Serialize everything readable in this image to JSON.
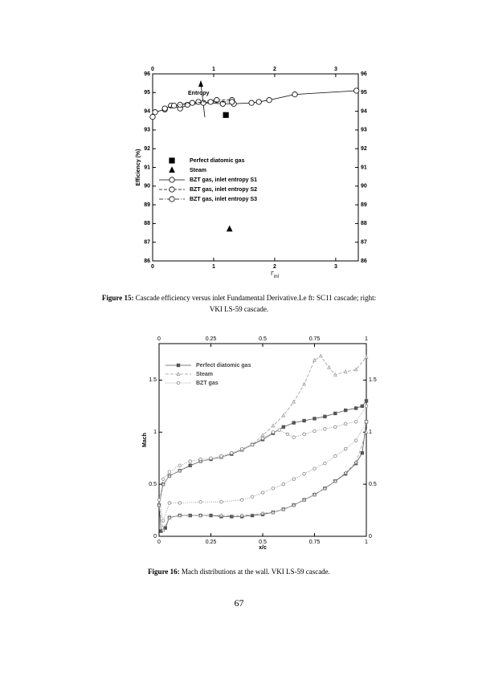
{
  "chart_data": [
    {
      "type": "line",
      "ylabel": "Efficiency (%)",
      "xlabel": "Γ",
      "xlabel_subscript": "inl",
      "annotation": "Entropy",
      "xlim": [
        0,
        3.37
      ],
      "xticks": [
        0,
        1,
        2,
        3
      ],
      "ylim": [
        86,
        96
      ],
      "yticks": [
        86,
        87,
        88,
        89,
        90,
        91,
        92,
        93,
        94,
        95,
        96
      ],
      "top_axis": true,
      "right_axis": true,
      "series": [
        {
          "name": "Perfect diatomic gas",
          "color": "#000000",
          "marker": "square",
          "line": "none",
          "x": [
            1.2
          ],
          "values": [
            93.8
          ]
        },
        {
          "name": "Steam",
          "color": "#000000",
          "marker": "triangle",
          "line": "none",
          "x": [
            1.26
          ],
          "values": [
            87.7
          ]
        },
        {
          "name": "BZT gas, inlet entropy S1",
          "color": "#000000",
          "marker": "circle",
          "line": "solid",
          "x": [
            0,
            0.04,
            0.2,
            0.3,
            0.45,
            0.57,
            0.83,
            1.15,
            1.33,
            1.62,
            1.74,
            1.91,
            2.33,
            3.34
          ],
          "values": [
            93.7,
            93.95,
            94.1,
            94.3,
            94.15,
            94.35,
            94.45,
            94.4,
            94.4,
            94.45,
            94.5,
            94.6,
            94.9,
            95.1
          ]
        },
        {
          "name": "BZT gas, inlet entropy S2",
          "color": "#000000",
          "marker": "circle",
          "line": "dashed",
          "x": [
            0.2,
            0.45,
            0.75,
            1.05,
            1.3
          ],
          "values": [
            94.15,
            94.35,
            94.5,
            94.6,
            94.6
          ]
        },
        {
          "name": "BZT gas, inlet entropy S3",
          "color": "#000000",
          "marker": "circle",
          "line": "dashdot",
          "x": [
            0.35,
            0.65,
            0.95,
            1.3
          ],
          "values": [
            94.3,
            94.45,
            94.5,
            94.5
          ]
        }
      ]
    },
    {
      "type": "line",
      "ylabel": "Mach",
      "xlabel": "x/c",
      "xlim": [
        0,
        1
      ],
      "xticks": [
        0,
        0.25,
        0.5,
        0.75,
        1
      ],
      "ylim": [
        0,
        1.85
      ],
      "yticks": [
        0,
        0.5,
        1,
        1.5
      ],
      "top_axis": true,
      "right_axis": true,
      "series": [
        {
          "name": "Perfect diatomic gas",
          "color": "#555555",
          "marker": "square",
          "line": "solid",
          "x": [
            1,
            0.98,
            0.95,
            0.9,
            0.85,
            0.8,
            0.75,
            0.7,
            0.65,
            0.6,
            0.55,
            0.5,
            0.45,
            0.4,
            0.35,
            0.3,
            0.25,
            0.2,
            0.15,
            0.1,
            0.05,
            0.03,
            0.01,
            0,
            0.02,
            0.05,
            0.1,
            0.15,
            0.2,
            0.25,
            0.3,
            0.35,
            0.4,
            0.45,
            0.5,
            0.55,
            0.6,
            0.65,
            0.7,
            0.75,
            0.8,
            0.85,
            0.9,
            0.95,
            0.98,
            1
          ],
          "values": [
            1.1,
            0.8,
            0.7,
            0.6,
            0.53,
            0.46,
            0.4,
            0.35,
            0.3,
            0.26,
            0.23,
            0.21,
            0.2,
            0.19,
            0.19,
            0.19,
            0.2,
            0.2,
            0.2,
            0.2,
            0.18,
            0.08,
            0.05,
            0.3,
            0.5,
            0.58,
            0.63,
            0.68,
            0.72,
            0.74,
            0.76,
            0.79,
            0.83,
            0.88,
            0.93,
            0.99,
            1.05,
            1.09,
            1.11,
            1.13,
            1.15,
            1.18,
            1.21,
            1.23,
            1.25,
            1.3
          ]
        },
        {
          "name": "Steam",
          "color": "#999999",
          "marker": "triangle",
          "line": "dashed",
          "x": [
            1,
            0.95,
            0.9,
            0.85,
            0.8,
            0.75,
            0.7,
            0.65,
            0.6,
            0.55,
            0.5,
            0.4,
            0.3,
            0.2,
            0.1,
            0.05,
            0.02,
            0,
            0.02,
            0.05,
            0.1,
            0.2,
            0.3,
            0.4,
            0.45,
            0.5,
            0.55,
            0.6,
            0.65,
            0.7,
            0.75,
            0.78,
            0.82,
            0.85,
            0.9,
            0.95,
            1
          ],
          "values": [
            1.0,
            0.71,
            0.61,
            0.53,
            0.46,
            0.4,
            0.35,
            0.3,
            0.26,
            0.23,
            0.22,
            0.2,
            0.2,
            0.2,
            0.2,
            0.18,
            0.06,
            0.3,
            0.5,
            0.58,
            0.63,
            0.72,
            0.76,
            0.83,
            0.88,
            0.97,
            1.06,
            1.16,
            1.29,
            1.46,
            1.69,
            1.73,
            1.62,
            1.55,
            1.58,
            1.6,
            1.72
          ]
        },
        {
          "name": "BZT gas",
          "color": "#888888",
          "marker": "circle",
          "line": "dotted",
          "x": [
            1,
            0.95,
            0.9,
            0.85,
            0.8,
            0.75,
            0.7,
            0.65,
            0.6,
            0.55,
            0.5,
            0.45,
            0.4,
            0.3,
            0.2,
            0.1,
            0.05,
            0.02,
            0,
            0.02,
            0.05,
            0.1,
            0.15,
            0.2,
            0.25,
            0.3,
            0.35,
            0.4,
            0.45,
            0.5,
            0.55,
            0.58,
            0.62,
            0.65,
            0.7,
            0.75,
            0.8,
            0.85,
            0.9,
            0.95,
            1
          ],
          "values": [
            1.1,
            0.92,
            0.84,
            0.77,
            0.7,
            0.65,
            0.6,
            0.55,
            0.5,
            0.46,
            0.42,
            0.38,
            0.35,
            0.33,
            0.33,
            0.32,
            0.32,
            0.15,
            0.35,
            0.55,
            0.62,
            0.68,
            0.72,
            0.74,
            0.75,
            0.77,
            0.8,
            0.84,
            0.88,
            0.94,
            1.0,
            1.02,
            0.98,
            0.95,
            0.98,
            1.01,
            1.03,
            1.05,
            1.08,
            1.1,
            1.25
          ]
        }
      ]
    }
  ],
  "captions": [
    {
      "label": "Figure 15:",
      "text": "Cascade efficiency versus inlet Fundamental Derivative.Le ft: SC11 cascade; right: VKI LS-59 cascade."
    },
    {
      "label": "Figure 16:",
      "text": "Mach distributions at the wall. VKI LS-59 cascade."
    }
  ],
  "page_number": "67"
}
